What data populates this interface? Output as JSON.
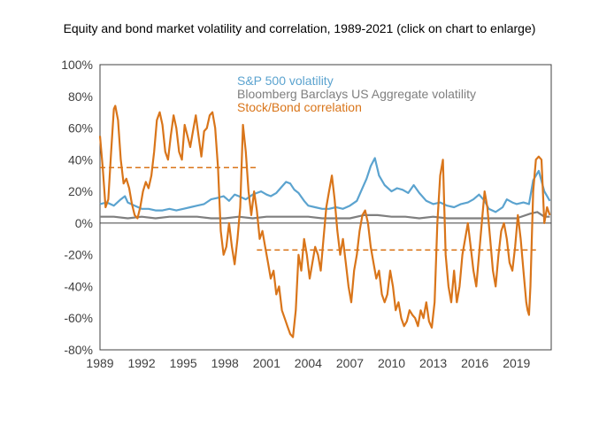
{
  "title": "Equity and bond market volatility and correlation, 1989-2021 (click on chart to enlarge)",
  "chart_data": {
    "type": "line",
    "title": "Equity and bond market volatility and correlation, 1989-2021 (click on chart to enlarge)",
    "xlabel": "",
    "ylabel": "",
    "xlim": [
      1989,
      2021.5
    ],
    "ylim": [
      -80,
      100
    ],
    "x_ticks": [
      "1989",
      "1992",
      "1995",
      "1998",
      "2001",
      "2004",
      "2007",
      "2010",
      "2013",
      "2016",
      "2019"
    ],
    "y_ticks": [
      "100%",
      "80%",
      "60%",
      "40%",
      "20%",
      "0%",
      "-20%",
      "-40%",
      "-60%",
      "-80%"
    ],
    "grid": false,
    "legend_position": "top-center",
    "series": [
      {
        "name": "S&P 500 volatility",
        "color": "#5ba3cf",
        "x": [
          1989.0,
          1989.5,
          1990.0,
          1990.5,
          1990.8,
          1991.0,
          1991.5,
          1992.0,
          1992.5,
          1993.0,
          1993.5,
          1994.0,
          1994.5,
          1995.0,
          1995.5,
          1996.0,
          1996.5,
          1997.0,
          1997.5,
          1997.9,
          1998.3,
          1998.7,
          1999.0,
          1999.5,
          2000.0,
          2000.3,
          2000.6,
          2001.0,
          2001.3,
          2001.7,
          2002.0,
          2002.4,
          2002.7,
          2003.0,
          2003.3,
          2003.7,
          2004.0,
          2004.5,
          2005.0,
          2005.5,
          2006.0,
          2006.5,
          2007.0,
          2007.5,
          2007.8,
          2008.2,
          2008.5,
          2008.8,
          2009.1,
          2009.5,
          2010.0,
          2010.4,
          2010.8,
          2011.2,
          2011.6,
          2012.0,
          2012.5,
          2013.0,
          2013.5,
          2014.0,
          2014.5,
          2015.0,
          2015.5,
          2015.9,
          2016.3,
          2016.7,
          2017.0,
          2017.5,
          2018.0,
          2018.3,
          2018.7,
          2019.0,
          2019.5,
          2019.9,
          2020.2,
          2020.6,
          2021.0,
          2021.4
        ],
        "y": [
          12,
          13,
          11,
          15,
          17,
          13,
          11,
          9,
          9,
          8,
          8,
          9,
          8,
          9,
          10,
          11,
          12,
          15,
          16,
          17,
          14,
          18,
          17,
          15,
          18,
          19,
          20,
          18,
          17,
          19,
          22,
          26,
          25,
          21,
          19,
          14,
          11,
          10,
          9,
          9,
          10,
          9,
          11,
          14,
          20,
          28,
          36,
          41,
          30,
          24,
          20,
          22,
          21,
          19,
          24,
          19,
          14,
          12,
          13,
          11,
          10,
          12,
          13,
          15,
          18,
          14,
          9,
          7,
          10,
          15,
          13,
          12,
          13,
          12,
          27,
          33,
          20,
          14
        ]
      },
      {
        "name": "Bloomberg Barclays US Aggregate volatility",
        "color": "#7f7f7f",
        "x": [
          1989.0,
          1990.0,
          1991.0,
          1992.0,
          1993.0,
          1994.0,
          1995.0,
          1996.0,
          1997.0,
          1998.0,
          1999.0,
          2000.0,
          2001.0,
          2002.0,
          2003.0,
          2004.0,
          2005.0,
          2006.0,
          2007.0,
          2008.0,
          2009.0,
          2010.0,
          2011.0,
          2012.0,
          2013.0,
          2014.0,
          2015.0,
          2016.0,
          2017.0,
          2018.0,
          2019.0,
          2020.0,
          2020.5,
          2021.0,
          2021.4
        ],
        "y": [
          4,
          4,
          3,
          4,
          3,
          4,
          4,
          4,
          3,
          3,
          4,
          3,
          4,
          4,
          4,
          4,
          3,
          3,
          3,
          5,
          5,
          4,
          4,
          3,
          4,
          3,
          3,
          3,
          3,
          3,
          3,
          6,
          7,
          4,
          4
        ]
      },
      {
        "name": "Stock/Bond correlation",
        "color": "#d9751a",
        "x": [
          1989.0,
          1989.2,
          1989.4,
          1989.6,
          1989.8,
          1990.0,
          1990.1,
          1990.3,
          1990.5,
          1990.7,
          1990.9,
          1991.1,
          1991.3,
          1991.5,
          1991.7,
          1991.9,
          1992.1,
          1992.3,
          1992.5,
          1992.7,
          1992.9,
          1993.1,
          1993.3,
          1993.5,
          1993.7,
          1993.9,
          1994.1,
          1994.3,
          1994.5,
          1994.7,
          1994.9,
          1995.1,
          1995.3,
          1995.5,
          1995.7,
          1995.9,
          1996.1,
          1996.3,
          1996.5,
          1996.7,
          1996.9,
          1997.1,
          1997.3,
          1997.5,
          1997.7,
          1997.9,
          1998.1,
          1998.3,
          1998.5,
          1998.7,
          1998.9,
          1999.1,
          1999.3,
          1999.5,
          1999.7,
          1999.9,
          2000.1,
          2000.3,
          2000.5,
          2000.7,
          2000.9,
          2001.1,
          2001.3,
          2001.5,
          2001.7,
          2001.9,
          2002.1,
          2002.3,
          2002.5,
          2002.7,
          2002.9,
          2003.1,
          2003.3,
          2003.5,
          2003.7,
          2003.9,
          2004.1,
          2004.3,
          2004.5,
          2004.7,
          2004.9,
          2005.1,
          2005.3,
          2005.5,
          2005.7,
          2005.9,
          2006.1,
          2006.3,
          2006.5,
          2006.7,
          2006.9,
          2007.1,
          2007.3,
          2007.5,
          2007.7,
          2007.9,
          2008.1,
          2008.3,
          2008.5,
          2008.7,
          2008.9,
          2009.1,
          2009.3,
          2009.5,
          2009.7,
          2009.9,
          2010.1,
          2010.3,
          2010.5,
          2010.7,
          2010.9,
          2011.1,
          2011.3,
          2011.5,
          2011.7,
          2011.9,
          2012.1,
          2012.3,
          2012.5,
          2012.7,
          2012.9,
          2013.1,
          2013.3,
          2013.5,
          2013.7,
          2013.9,
          2014.1,
          2014.3,
          2014.5,
          2014.7,
          2014.9,
          2015.1,
          2015.3,
          2015.5,
          2015.7,
          2015.9,
          2016.1,
          2016.3,
          2016.5,
          2016.7,
          2016.9,
          2017.1,
          2017.3,
          2017.5,
          2017.7,
          2017.9,
          2018.1,
          2018.3,
          2018.5,
          2018.7,
          2018.9,
          2019.1,
          2019.3,
          2019.5,
          2019.7,
          2019.8,
          2019.9,
          2020.0,
          2020.2,
          2020.4,
          2020.6,
          2020.8,
          2021.0,
          2021.2,
          2021.4
        ],
        "y": [
          55,
          35,
          10,
          15,
          45,
          72,
          74,
          65,
          40,
          25,
          28,
          22,
          12,
          5,
          3,
          10,
          20,
          26,
          22,
          30,
          45,
          65,
          70,
          62,
          45,
          40,
          55,
          68,
          60,
          45,
          40,
          62,
          55,
          48,
          58,
          68,
          55,
          42,
          58,
          60,
          68,
          70,
          60,
          35,
          -5,
          -20,
          -15,
          0,
          -15,
          -26,
          -10,
          10,
          62,
          45,
          20,
          5,
          20,
          8,
          -10,
          -5,
          -15,
          -25,
          -35,
          -30,
          -45,
          -40,
          -55,
          -60,
          -65,
          -70,
          -72,
          -55,
          -20,
          -30,
          -10,
          -20,
          -35,
          -25,
          -15,
          -20,
          -30,
          -10,
          10,
          20,
          30,
          15,
          -5,
          -20,
          -10,
          -25,
          -40,
          -50,
          -30,
          -20,
          -5,
          5,
          8,
          0,
          -15,
          -25,
          -35,
          -30,
          -45,
          -50,
          -45,
          -30,
          -40,
          -55,
          -50,
          -60,
          -65,
          -62,
          -55,
          -58,
          -60,
          -65,
          -55,
          -60,
          -50,
          -62,
          -66,
          -50,
          0,
          30,
          40,
          -20,
          -40,
          -50,
          -30,
          -50,
          -40,
          -20,
          -10,
          0,
          -15,
          -30,
          -40,
          -20,
          0,
          20,
          10,
          -10,
          -30,
          -40,
          -20,
          -5,
          0,
          -10,
          -25,
          -30,
          -15,
          5,
          -10,
          -30,
          -50,
          -55,
          -58,
          -40,
          20,
          40,
          42,
          40,
          0,
          10,
          5
        ]
      }
    ],
    "reference_lines": [
      {
        "color": "#d9751a",
        "style": "dashed",
        "x_start": 1989.0,
        "x_end": 2000.3,
        "y": 35
      },
      {
        "color": "#d9751a",
        "style": "dashed",
        "x_start": 2000.3,
        "x_end": 2020.4,
        "y": -17
      }
    ],
    "legend": [
      {
        "text": "S&P 500 volatility",
        "color": "#5ba3cf"
      },
      {
        "text": "Bloomberg Barclays US Aggregate volatility",
        "color": "#7f7f7f"
      },
      {
        "text": "Stock/Bond correlation",
        "color": "#d9751a"
      }
    ],
    "colors": {
      "axis": "#404040",
      "zero_line": "#404040",
      "text": "#404040"
    }
  }
}
